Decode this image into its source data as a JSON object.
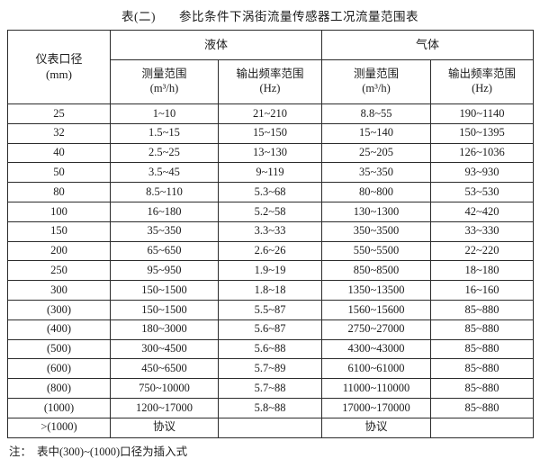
{
  "title": {
    "prefix": "表(二)",
    "text": "参比条件下涡街流量传感器工况流量范围表"
  },
  "header": {
    "diameter_line1": "仪表口径",
    "diameter_line2": "(mm)",
    "group_liquid": "液体",
    "group_gas": "气体",
    "measure_range": "测量范围",
    "measure_unit": "(m³/h)",
    "freq_range": "输出频率范围",
    "freq_unit": "(Hz)"
  },
  "table": {
    "rows": [
      {
        "dn": "25",
        "lm": "1~10",
        "lf": "21~210",
        "gm": "8.8~55",
        "gf": "190~1140"
      },
      {
        "dn": "32",
        "lm": "1.5~15",
        "lf": "15~150",
        "gm": "15~140",
        "gf": "150~1395"
      },
      {
        "dn": "40",
        "lm": "2.5~25",
        "lf": "13~130",
        "gm": "25~205",
        "gf": "126~1036"
      },
      {
        "dn": "50",
        "lm": "3.5~45",
        "lf": "9~119",
        "gm": "35~350",
        "gf": "93~930"
      },
      {
        "dn": "80",
        "lm": "8.5~110",
        "lf": "5.3~68",
        "gm": "80~800",
        "gf": "53~530"
      },
      {
        "dn": "100",
        "lm": "16~180",
        "lf": "5.2~58",
        "gm": "130~1300",
        "gf": "42~420"
      },
      {
        "dn": "150",
        "lm": "35~350",
        "lf": "3.3~33",
        "gm": "350~3500",
        "gf": "33~330"
      },
      {
        "dn": "200",
        "lm": "65~650",
        "lf": "2.6~26",
        "gm": "550~5500",
        "gf": "22~220"
      },
      {
        "dn": "250",
        "lm": "95~950",
        "lf": "1.9~19",
        "gm": "850~8500",
        "gf": "18~180"
      },
      {
        "dn": "300",
        "lm": "150~1500",
        "lf": "1.8~18",
        "gm": "1350~13500",
        "gf": "16~160"
      },
      {
        "dn": "(300)",
        "lm": "150~1500",
        "lf": "5.5~87",
        "gm": "1560~15600",
        "gf": "85~880"
      },
      {
        "dn": "(400)",
        "lm": "180~3000",
        "lf": "5.6~87",
        "gm": "2750~27000",
        "gf": "85~880"
      },
      {
        "dn": "(500)",
        "lm": "300~4500",
        "lf": "5.6~88",
        "gm": "4300~43000",
        "gf": "85~880"
      },
      {
        "dn": "(600)",
        "lm": "450~6500",
        "lf": "5.7~89",
        "gm": "6100~61000",
        "gf": "85~880"
      },
      {
        "dn": "(800)",
        "lm": "750~10000",
        "lf": "5.7~88",
        "gm": "11000~110000",
        "gf": "85~880"
      },
      {
        "dn": "(1000)",
        "lm": "1200~17000",
        "lf": "5.8~88",
        "gm": "17000~170000",
        "gf": "85~880"
      },
      {
        "dn": ">(1000)",
        "lm": "协议",
        "lf": "",
        "gm": "协议",
        "gf": ""
      }
    ]
  },
  "note": {
    "label": "注：",
    "text": "表中(300)~(1000)口径为插入式"
  },
  "colors": {
    "text": "#1b1b1b",
    "border": "#2b2b2b",
    "background": "#ffffff"
  }
}
